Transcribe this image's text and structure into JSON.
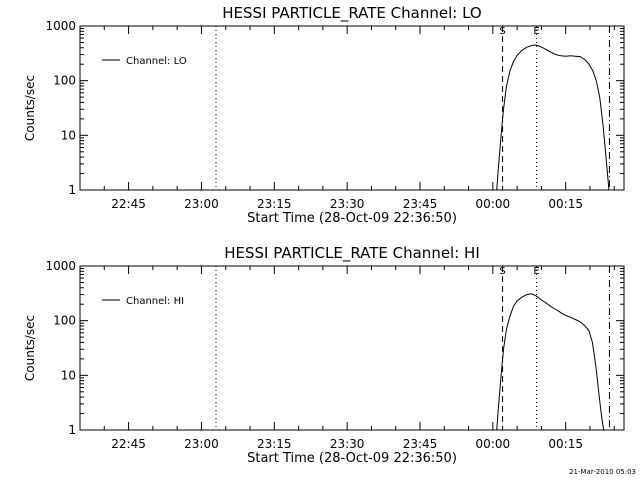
{
  "chart_data": [
    {
      "type": "line",
      "title": "HESSI PARTICLE_RATE Channel: LO",
      "xlabel": "Start Time (28-Oct-09 22:36:50)",
      "ylabel": "Counts/sec",
      "y_scale": "log",
      "ylim": [
        1,
        1000
      ],
      "y_ticks": [
        "1",
        "10",
        "100",
        "1000"
      ],
      "x_ticks": [
        "22:45",
        "23:00",
        "23:15",
        "23:30",
        "23:45",
        "00:00",
        "00:15"
      ],
      "legend": {
        "placement": "top-left",
        "entries": [
          "Channel: LO"
        ]
      },
      "markers": [
        {
          "label": "S",
          "time_min": 77,
          "style": "dashed"
        },
        {
          "label": "E",
          "time_min": 84,
          "style": "dotted"
        },
        {
          "label": "",
          "time_min": 99,
          "style": "dash-dot"
        },
        {
          "label": "",
          "time_min": 18,
          "style": "dotted"
        }
      ],
      "series": [
        {
          "name": "Channel: LO",
          "x_min": [
            75.8,
            76.2,
            76.7,
            77.2,
            77.8,
            78.5,
            79.2,
            80,
            81,
            82,
            83,
            83.7,
            84.5,
            85.3,
            86,
            87,
            88,
            89,
            90,
            91,
            92,
            93,
            94,
            94.8,
            95.6,
            96.3,
            97,
            97.7,
            98.3,
            98.9
          ],
          "y": [
            1,
            3,
            10,
            30,
            80,
            150,
            220,
            290,
            360,
            410,
            440,
            450,
            430,
            400,
            370,
            330,
            300,
            285,
            280,
            285,
            280,
            275,
            240,
            200,
            150,
            100,
            50,
            15,
            4,
            1
          ]
        }
      ]
    },
    {
      "type": "line",
      "title": "HESSI PARTICLE_RATE Channel: HI",
      "xlabel": "Start Time (28-Oct-09 22:36:50)",
      "ylabel": "Counts/sec",
      "y_scale": "log",
      "ylim": [
        1,
        1000
      ],
      "y_ticks": [
        "1",
        "10",
        "100",
        "1000"
      ],
      "x_ticks": [
        "22:45",
        "23:00",
        "23:15",
        "23:30",
        "23:45",
        "00:00",
        "00:15"
      ],
      "legend": {
        "placement": "top-left",
        "entries": [
          "Channel: HI"
        ]
      },
      "markers": [
        {
          "label": "S",
          "time_min": 77,
          "style": "dashed"
        },
        {
          "label": "E",
          "time_min": 84,
          "style": "dotted"
        },
        {
          "label": "",
          "time_min": 99,
          "style": "dash-dot"
        },
        {
          "label": "",
          "time_min": 18,
          "style": "dotted"
        }
      ],
      "series": [
        {
          "name": "Channel: HI",
          "x_min": [
            75.8,
            76.2,
            76.7,
            77.2,
            77.8,
            78.5,
            79.2,
            80,
            81,
            82,
            83,
            84,
            85,
            86,
            87,
            88,
            89,
            90,
            91,
            92,
            93,
            94,
            94.8,
            95.5,
            96.2,
            96.8,
            97.3,
            97.8
          ],
          "y": [
            1,
            3,
            10,
            30,
            70,
            120,
            180,
            230,
            270,
            300,
            310,
            280,
            240,
            210,
            180,
            160,
            140,
            125,
            115,
            105,
            95,
            80,
            65,
            40,
            15,
            5,
            2,
            1
          ]
        }
      ]
    }
  ],
  "footer": {
    "timestamp": "21-Mar-2010 05:03"
  }
}
